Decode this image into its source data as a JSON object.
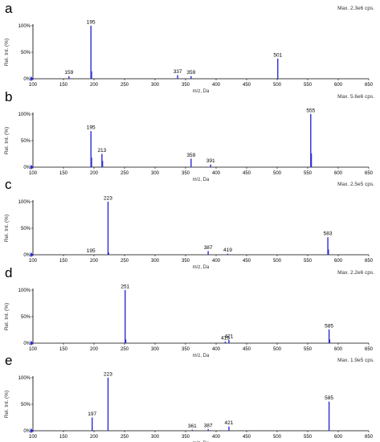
{
  "figure": {
    "color_axis": "#000000",
    "color_peak": "#2b2bd9"
  },
  "chart_data": [
    {
      "panel_label": "a",
      "type": "bar",
      "title": "Max. 2.3e6 cps.",
      "xlabel": "m/z, Da",
      "ylabel": "Rel. Int. (%)",
      "xlim": [
        100,
        650
      ],
      "ylim": [
        0,
        100
      ],
      "xticks": [
        "100",
        "150",
        "200",
        "250",
        "300",
        "350",
        "400",
        "450",
        "500",
        "550",
        "600",
        "650"
      ],
      "yticks": [
        "0%",
        "50%",
        "100%"
      ],
      "peaks": [
        {
          "x": 159,
          "y": 5,
          "label": "159"
        },
        {
          "x": 195,
          "y": 100,
          "label": "195"
        },
        {
          "x": 196,
          "y": 14,
          "label": ""
        },
        {
          "x": 337,
          "y": 7,
          "label": "337"
        },
        {
          "x": 359,
          "y": 5,
          "label": "359"
        },
        {
          "x": 501,
          "y": 38,
          "label": "501"
        }
      ]
    },
    {
      "panel_label": "b",
      "type": "bar",
      "title": "Max. 5.6e6 cps.",
      "xlabel": "m/z, Da",
      "ylabel": "Rel. Int. (%)",
      "xlim": [
        100,
        650
      ],
      "ylim": [
        0,
        100
      ],
      "xticks": [
        "100",
        "150",
        "200",
        "250",
        "300",
        "350",
        "400",
        "450",
        "500",
        "550",
        "600",
        "650"
      ],
      "yticks": [
        "0%",
        "50%",
        "100%"
      ],
      "peaks": [
        {
          "x": 195,
          "y": 68,
          "label": "195"
        },
        {
          "x": 196,
          "y": 18,
          "label": ""
        },
        {
          "x": 213,
          "y": 25,
          "label": "213"
        },
        {
          "x": 214,
          "y": 12,
          "label": ""
        },
        {
          "x": 359,
          "y": 16,
          "label": "359"
        },
        {
          "x": 391,
          "y": 5,
          "label": "391"
        },
        {
          "x": 555,
          "y": 100,
          "label": "555"
        },
        {
          "x": 556,
          "y": 26,
          "label": ""
        }
      ]
    },
    {
      "panel_label": "c",
      "type": "bar",
      "title": "Max. 2.5e5 cps.",
      "xlabel": "m/z, Da",
      "ylabel": "Rel. Int. (%)",
      "xlim": [
        100,
        650
      ],
      "ylim": [
        0,
        100
      ],
      "xticks": [
        "100",
        "150",
        "200",
        "250",
        "300",
        "350",
        "400",
        "450",
        "500",
        "550",
        "600",
        "650"
      ],
      "yticks": [
        "0%",
        "50%",
        "100%"
      ],
      "peaks": [
        {
          "x": 195,
          "y": 1,
          "label": "195"
        },
        {
          "x": 223,
          "y": 100,
          "label": "223"
        },
        {
          "x": 224,
          "y": 4,
          "label": ""
        },
        {
          "x": 387,
          "y": 7,
          "label": "387"
        },
        {
          "x": 419,
          "y": 2,
          "label": "419"
        },
        {
          "x": 583,
          "y": 33,
          "label": "583"
        },
        {
          "x": 584,
          "y": 10,
          "label": ""
        }
      ]
    },
    {
      "panel_label": "d",
      "type": "bar",
      "title": "Max. 2.2e6 cps.",
      "xlabel": "m/z, Da",
      "ylabel": "Rel. Int. (%)",
      "xlim": [
        100,
        650
      ],
      "ylim": [
        0,
        100
      ],
      "xticks": [
        "100",
        "150",
        "200",
        "250",
        "300",
        "350",
        "400",
        "450",
        "500",
        "550",
        "600",
        "650"
      ],
      "yticks": [
        "0%",
        "50%",
        "100%"
      ],
      "peaks": [
        {
          "x": 251,
          "y": 100,
          "label": "251"
        },
        {
          "x": 252,
          "y": 7,
          "label": ""
        },
        {
          "x": 415,
          "y": 3,
          "label": "415"
        },
        {
          "x": 421,
          "y": 6,
          "label": "421"
        },
        {
          "x": 585,
          "y": 26,
          "label": "585"
        },
        {
          "x": 586,
          "y": 7,
          "label": ""
        }
      ]
    },
    {
      "panel_label": "e",
      "type": "bar",
      "title": "Max. 1.9e5 cps.",
      "xlabel": "m/z, Da",
      "ylabel": "Rel. Int. (%)",
      "xlim": [
        100,
        650
      ],
      "ylim": [
        0,
        100
      ],
      "xticks": [
        "100",
        "150",
        "200",
        "250",
        "300",
        "350",
        "400",
        "450",
        "500",
        "550",
        "600",
        "650"
      ],
      "yticks": [
        "0%",
        "50%",
        "100%"
      ],
      "peaks": [
        {
          "x": 197,
          "y": 25,
          "label": "197"
        },
        {
          "x": 223,
          "y": 100,
          "label": "223"
        },
        {
          "x": 361,
          "y": 2,
          "label": "361"
        },
        {
          "x": 387,
          "y": 3,
          "label": "387"
        },
        {
          "x": 421,
          "y": 8,
          "label": "421"
        },
        {
          "x": 585,
          "y": 55,
          "label": "585"
        }
      ]
    }
  ]
}
